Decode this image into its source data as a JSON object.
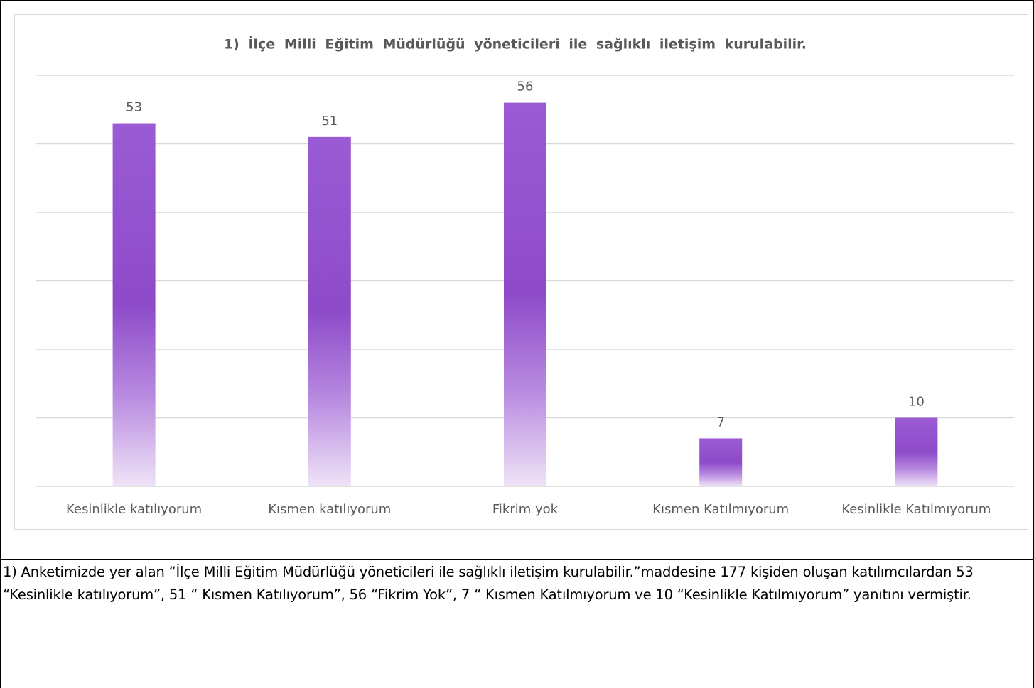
{
  "chart_data": {
    "type": "bar",
    "title": "1) İlçe Milli Eğitim Müdürlüğü yöneticileri ile sağlıklı iletişim kurulabilir.",
    "categories": [
      "Kesinlikle katılıyorum",
      "Kısmen katılıyorum",
      "Fikrim yok",
      "Kısmen Katılmıyorum",
      "Kesinlikle Katılmıyorum"
    ],
    "values": [
      53,
      51,
      56,
      7,
      10
    ],
    "color": "#9452d1",
    "ylim": [
      0,
      60
    ],
    "yticks": [
      0,
      10,
      20,
      30,
      40,
      50,
      60
    ],
    "grid": true
  },
  "paragraph": "1) Anketimizde yer alan “İlçe Milli Eğitim Müdürlüğü yöneticileri ile sağlıklı iletişim kurulabilir.”maddesine 177 kişiden oluşan katılımcılardan 53 “Kesinlikle katılıyorum”, 51 “ Kısmen Katılıyorum”, 56 “Fikrim Yok”, 7 “ Kısmen Katılmıyorum ve 10 “Kesinlikle Katılmıyorum” yanıtını vermiştir."
}
